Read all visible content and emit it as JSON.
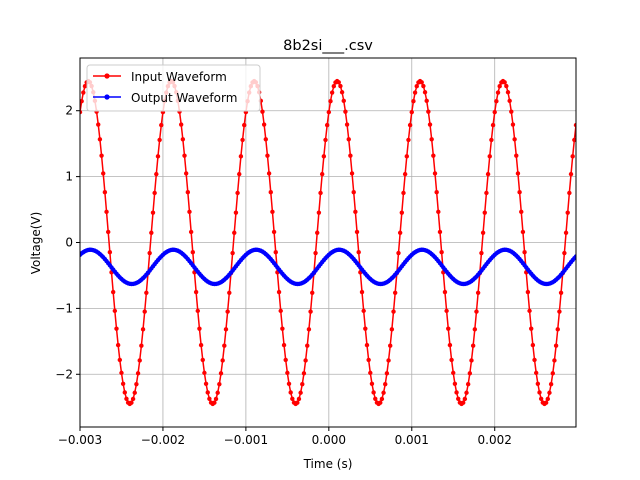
{
  "chart_data": {
    "type": "line",
    "title": "8b2si___.csv",
    "xlabel": "Time (s)",
    "ylabel": "Voltage(V)",
    "xlim": [
      -0.003,
      0.00298
    ],
    "ylim": [
      -2.8,
      2.8
    ],
    "grid": true,
    "legend_position": "top-left",
    "x_ticks": [
      -0.003,
      -0.002,
      -0.001,
      0.0,
      0.001,
      0.002
    ],
    "x_tick_labels": [
      "−0.003",
      "−0.002",
      "−0.001",
      "0.000",
      "0.001",
      "0.002"
    ],
    "y_ticks": [
      -2,
      -1,
      0,
      1,
      2
    ],
    "y_tick_labels": [
      "−2",
      "−1",
      "0",
      "1",
      "2"
    ],
    "sample_interval": 2e-05,
    "series": [
      {
        "name": "Input Waveform",
        "color": "#ff0000",
        "marker": "circle",
        "frequency_hz": 1000,
        "amplitude": 2.45,
        "offset": 0.0,
        "phase_rad": 0.94,
        "x_start": -0.003,
        "x_end": 0.00298
      },
      {
        "name": "Output Waveform",
        "color": "#0000ff",
        "marker": "circle",
        "frequency_hz": 1000,
        "amplitude": 0.26,
        "offset": -0.37,
        "phase_rad": 0.785,
        "x_start": -0.003,
        "x_end": 0.00298
      }
    ]
  }
}
